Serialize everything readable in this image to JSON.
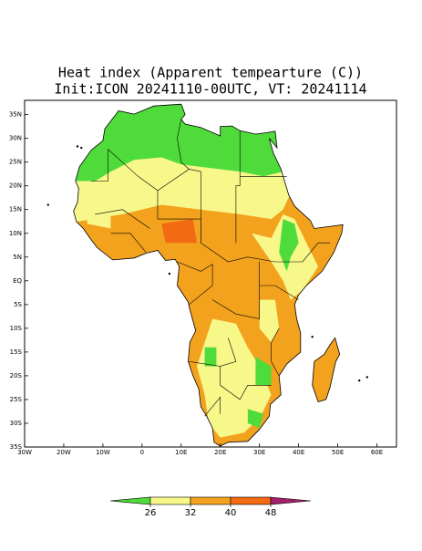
{
  "map": {
    "title": "Heat index (Apparent tempearture (C))",
    "subtitle": "Init:ICON 20241110-00UTC, VT: 20241114",
    "xlim": [
      -30,
      65
    ],
    "ylim": [
      -35,
      38
    ],
    "xticks": [
      {
        "value": -30,
        "label": "30W"
      },
      {
        "value": -20,
        "label": "20W"
      },
      {
        "value": -10,
        "label": "10W"
      },
      0,
      {
        "value": 10,
        "label": "10E"
      },
      {
        "value": 20,
        "label": "20E"
      },
      {
        "value": 30,
        "label": "30E"
      },
      {
        "value": 40,
        "label": "40E"
      },
      {
        "value": 50,
        "label": "50E"
      },
      {
        "value": 60,
        "label": "60E"
      }
    ],
    "yticks": [
      {
        "value": 35,
        "label": "35N"
      },
      {
        "value": 30,
        "label": "30N"
      },
      {
        "value": 25,
        "label": "25N"
      },
      {
        "value": 20,
        "label": "20N"
      },
      {
        "value": 15,
        "label": "15N"
      },
      {
        "value": 10,
        "label": "10N"
      },
      {
        "value": 5,
        "label": "5N"
      },
      {
        "value": 0,
        "label": "EQ"
      },
      {
        "value": -5,
        "label": "5S"
      },
      {
        "value": -10,
        "label": "10S"
      },
      {
        "value": -15,
        "label": "15S"
      },
      {
        "value": -20,
        "label": "20S"
      },
      {
        "value": -25,
        "label": "25S"
      },
      {
        "value": -30,
        "label": "30S"
      },
      {
        "value": -35,
        "label": "35S"
      }
    ],
    "colorbar": {
      "levels": [
        26,
        32,
        40,
        48
      ],
      "colors": [
        "#4fdc3a",
        "#f7f78a",
        "#f3a21e",
        "#f26a12",
        "#a0206a"
      ]
    }
  }
}
